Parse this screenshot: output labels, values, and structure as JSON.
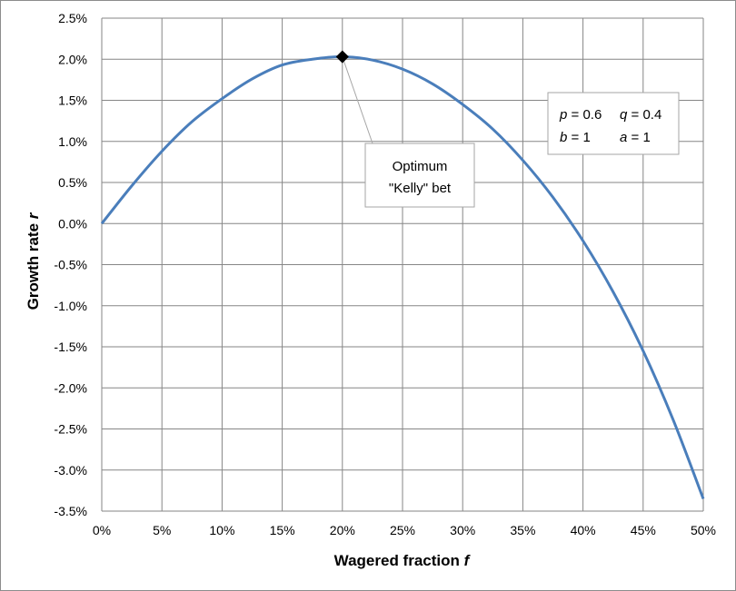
{
  "chart_data": {
    "type": "line",
    "xlabel": "Wagered fraction",
    "xlabel_var": "f",
    "ylabel": "Growth rate",
    "ylabel_var": "r",
    "xlim": [
      0,
      0.5
    ],
    "ylim": [
      -0.035,
      0.025
    ],
    "x_ticks": [
      "0%",
      "5%",
      "10%",
      "15%",
      "20%",
      "25%",
      "30%",
      "35%",
      "40%",
      "45%",
      "50%"
    ],
    "y_ticks": [
      "2.5%",
      "2.0%",
      "1.5%",
      "1.0%",
      "0.5%",
      "0.0%",
      "-0.5%",
      "-1.0%",
      "-1.5%",
      "-2.0%",
      "-2.5%",
      "-3.0%",
      "-3.5%"
    ],
    "grid": true,
    "series": [
      {
        "color": "#4a7ebb",
        "x": [
          0,
          0.025,
          0.05,
          0.075,
          0.1,
          0.125,
          0.15,
          0.175,
          0.2,
          0.225,
          0.25,
          0.275,
          0.3,
          0.325,
          0.35,
          0.375,
          0.4,
          0.425,
          0.45,
          0.475,
          0.5
        ],
        "y": [
          0,
          0.0046,
          0.0088,
          0.0124,
          0.0152,
          0.0176,
          0.0193,
          0.02,
          0.0203,
          0.0199,
          0.0188,
          0.017,
          0.0145,
          0.0115,
          0.0077,
          0.0032,
          -0.0021,
          -0.0083,
          -0.0155,
          -0.0239,
          -0.0335
        ]
      }
    ],
    "marker": {
      "x": 0.2,
      "y": 0.0203,
      "shape": "diamond",
      "color": "#000000"
    },
    "annotations": {
      "callout_line1": "Optimum",
      "callout_line2": "\"Kelly\" bet",
      "params_p_var": "p",
      "params_p_val": " = 0.6",
      "params_q_var": "q",
      "params_q_val": " = 0.4",
      "params_b_var": "b",
      "params_b_val": " = 1",
      "params_a_var": "a",
      "params_a_val": " = 1"
    }
  }
}
